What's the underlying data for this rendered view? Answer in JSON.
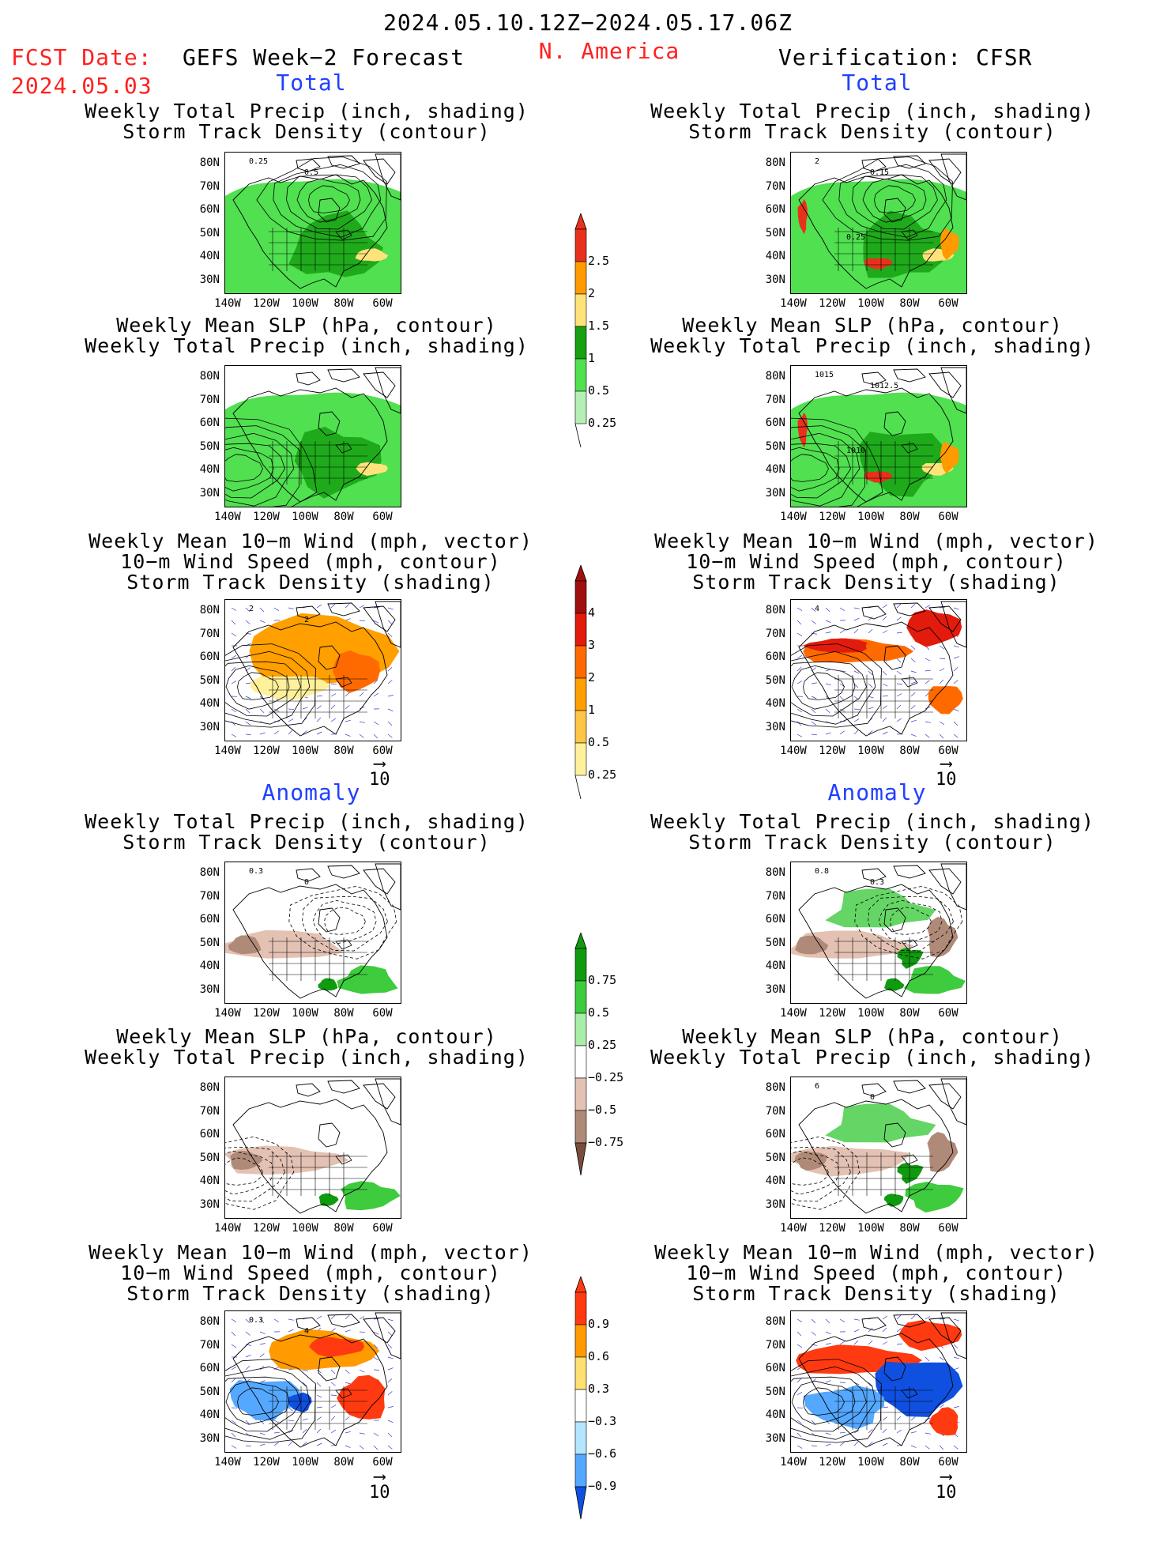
{
  "header": {
    "period": "2024.05.10.12Z−2024.05.17.06Z",
    "fcst_label": "FCST Date:",
    "fcst_date": "2024.05.03",
    "left_title": "GEFS Week−2 Forecast",
    "region": "N. America",
    "right_title": "Verification: CFSR"
  },
  "sections": [
    {
      "label": "Total",
      "color": "#2040ff"
    },
    {
      "label": "Anomaly",
      "color": "#2040ff"
    }
  ],
  "panel_titles": {
    "precip_track": [
      "Weekly Total Precip (inch, shading)",
      "Storm Track Density (contour)"
    ],
    "slp_precip": [
      "Weekly Mean SLP (hPa, contour)",
      "Weekly Total Precip (inch, shading)"
    ],
    "wind_track": [
      "Weekly Mean 10−m Wind (mph, vector)",
      "10−m Wind Speed (mph, contour)",
      "Storm Track Density (shading)"
    ]
  },
  "axes": {
    "lat_labels": [
      "80N",
      "70N",
      "60N",
      "50N",
      "40N",
      "30N"
    ],
    "lon_labels": [
      "140W",
      "120W",
      "100W",
      "80W",
      "60W"
    ]
  },
  "vector_ref": "10",
  "contour_labels": {
    "p0": [
      "0.25",
      "0.5"
    ],
    "p1": [
      "2",
      "0.15",
      "0.25"
    ],
    "p3": [
      "1015",
      "1012.5",
      "1010"
    ],
    "p4": [
      "2",
      "2"
    ],
    "p5": [
      "4"
    ],
    "p6": [
      "0.3",
      "0"
    ],
    "p7": [
      "0.8",
      "0.3"
    ],
    "p9": [
      "6",
      "0"
    ],
    "p10": [
      "0.3",
      "4"
    ]
  },
  "colorbars": {
    "precip_total": {
      "labels": [
        "2.5",
        "2",
        "1.5",
        "1",
        "0.5",
        "0.25"
      ],
      "colors": [
        "#e8311d",
        "#ff9a00",
        "#ffe37a",
        "#16a012",
        "#50e050",
        "#b4f0b4"
      ]
    },
    "track_total": {
      "labels": [
        "4",
        "3",
        "2",
        "1",
        "0.5",
        "0.25"
      ],
      "colors": [
        "#a00f0f",
        "#e21b0c",
        "#ff6a00",
        "#ff9f00",
        "#ffc545",
        "#fff19b"
      ]
    },
    "precip_anom": {
      "labels": [
        "0.75",
        "0.5",
        "0.25",
        "−0.25",
        "−0.5",
        "−0.75"
      ],
      "colors": [
        "#109a10",
        "#3ecb3e",
        "#a8eea8",
        "#ffffff",
        "#e3c2b4",
        "#b08a78",
        "#7a4c3c"
      ]
    },
    "track_anom": {
      "labels": [
        "0.9",
        "0.6",
        "0.3",
        "−0.3",
        "−0.6",
        "−0.9"
      ],
      "colors": [
        "#ff3a10",
        "#ff9a00",
        "#ffe070",
        "#ffffff",
        "#b4e6ff",
        "#55a8ff",
        "#1050e0"
      ]
    }
  }
}
